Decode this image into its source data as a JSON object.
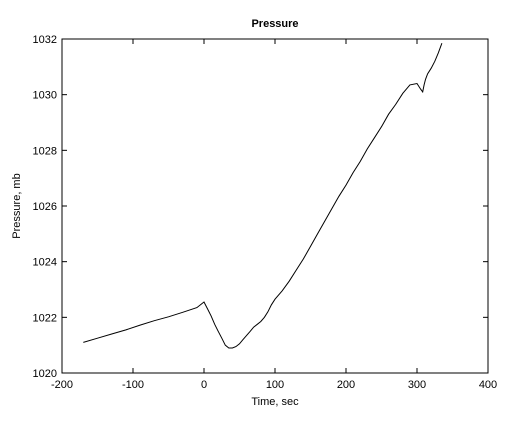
{
  "chart_data": {
    "type": "line",
    "title": "Pressure",
    "xlabel": "Time, sec",
    "ylabel": "Pressure, mb",
    "xlim": [
      -200,
      400
    ],
    "ylim": [
      1020,
      1032
    ],
    "xticks": [
      -200,
      -100,
      0,
      100,
      200,
      300,
      400
    ],
    "yticks": [
      1020,
      1022,
      1024,
      1026,
      1028,
      1030,
      1032
    ],
    "xtick_labels": [
      "-200",
      "-100",
      "0",
      "100",
      "200",
      "300",
      "400"
    ],
    "ytick_labels": [
      "1020",
      "1022",
      "1024",
      "1026",
      "1028",
      "1030",
      "1032"
    ],
    "grid": false,
    "line_color": "#000000",
    "series": [
      {
        "x": [
          -170,
          -150,
          -130,
          -110,
          -90,
          -70,
          -50,
          -30,
          -10,
          0,
          5,
          10,
          15,
          20,
          25,
          30,
          35,
          40,
          45,
          50,
          55,
          60,
          65,
          70,
          75,
          80,
          85,
          90,
          95,
          100,
          110,
          120,
          130,
          140,
          150,
          160,
          170,
          180,
          190,
          200,
          210,
          220,
          230,
          240,
          250,
          260,
          270,
          280,
          290,
          300,
          305,
          308,
          310,
          312,
          315,
          320,
          325,
          330,
          335
        ],
        "y": [
          1021.1,
          1021.25,
          1021.4,
          1021.55,
          1021.72,
          1021.88,
          1022.02,
          1022.18,
          1022.35,
          1022.55,
          1022.3,
          1022.05,
          1021.75,
          1021.5,
          1021.25,
          1021.0,
          1020.9,
          1020.9,
          1020.95,
          1021.05,
          1021.2,
          1021.35,
          1021.5,
          1021.65,
          1021.75,
          1021.85,
          1022.0,
          1022.2,
          1022.45,
          1022.65,
          1022.95,
          1023.3,
          1023.7,
          1024.1,
          1024.55,
          1025.0,
          1025.45,
          1025.9,
          1026.35,
          1026.75,
          1027.2,
          1027.6,
          1028.05,
          1028.45,
          1028.85,
          1029.3,
          1029.65,
          1030.05,
          1030.35,
          1030.4,
          1030.2,
          1030.1,
          1030.35,
          1030.55,
          1030.75,
          1030.95,
          1031.2,
          1031.5,
          1031.85
        ]
      }
    ]
  }
}
